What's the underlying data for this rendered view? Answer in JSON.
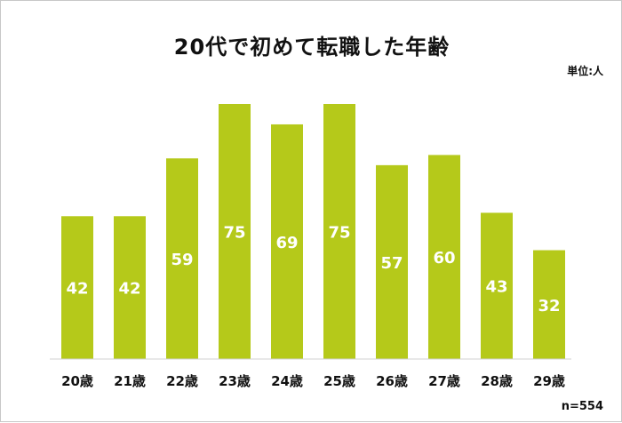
{
  "chart_data": {
    "type": "bar",
    "title": "20代で初めて転職した年齢",
    "unit_label": "単位:人",
    "note": "n=554",
    "categories": [
      "20歳",
      "21歳",
      "22歳",
      "23歳",
      "24歳",
      "25歳",
      "26歳",
      "27歳",
      "28歳",
      "29歳"
    ],
    "values": [
      42,
      42,
      59,
      75,
      69,
      75,
      57,
      60,
      43,
      32
    ],
    "value_labels": [
      "42",
      "42",
      "59",
      "75",
      "69",
      "75",
      "57",
      "60",
      "43",
      "32"
    ],
    "ylim": [
      0,
      75
    ],
    "grid": false,
    "legend": "none",
    "bar_color": "#b5c91a"
  }
}
